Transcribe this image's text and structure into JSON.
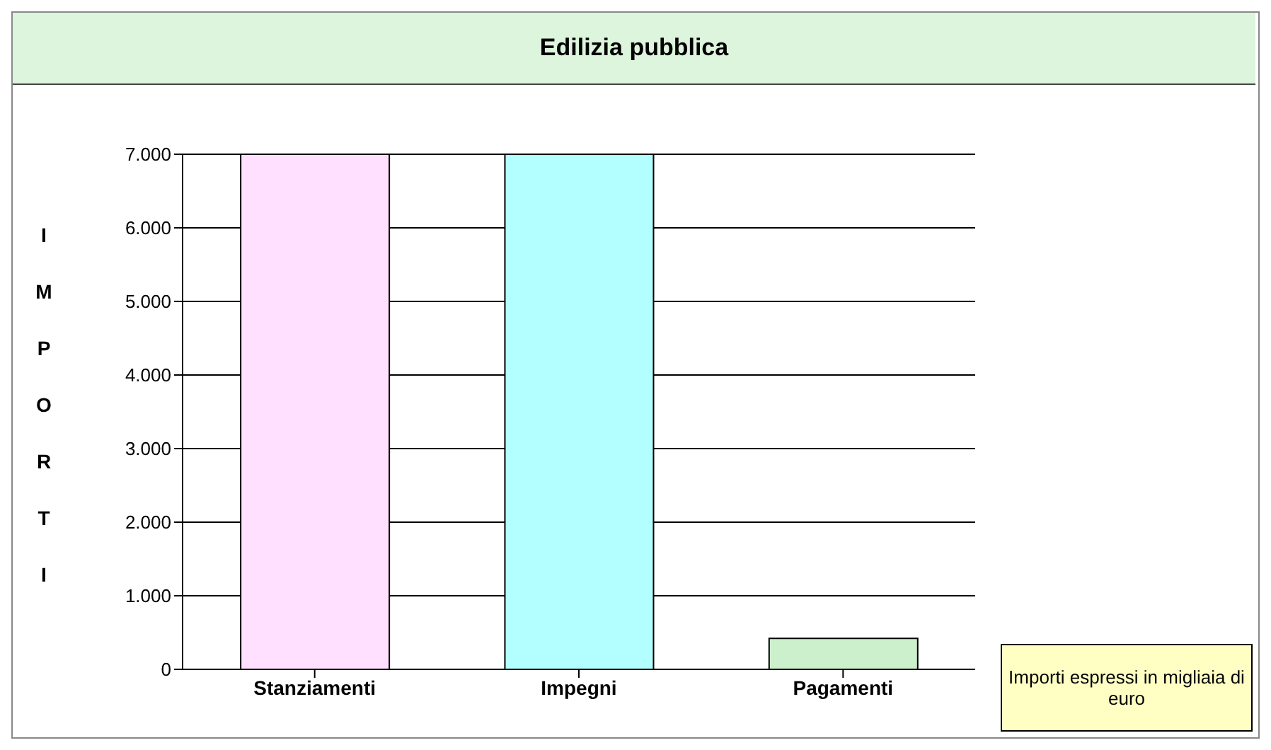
{
  "chart_data": {
    "type": "bar",
    "title": "Edilizia pubblica",
    "ylabel": "IMPORTI",
    "categories": [
      "Stanziamenti",
      "Impegni",
      "Pagamenti"
    ],
    "values": [
      7000,
      7000,
      420
    ],
    "colors": [
      "#ffe0ff",
      "#b3ffff",
      "#ccf0cc"
    ],
    "ylim": [
      0,
      7000
    ],
    "yticks": [
      0,
      {
        "value": 1000,
        "label": "1.000"
      },
      {
        "value": 2000,
        "label": "2.000"
      },
      {
        "value": 3000,
        "label": "3.000"
      },
      {
        "value": 4000,
        "label": "4.000"
      },
      {
        "value": 5000,
        "label": "5.000"
      },
      {
        "value": 6000,
        "label": "6.000"
      },
      {
        "value": 7000,
        "label": "7.000"
      }
    ],
    "grid": "y",
    "annotations": [
      "Importi espressi in migliaia di euro"
    ]
  }
}
